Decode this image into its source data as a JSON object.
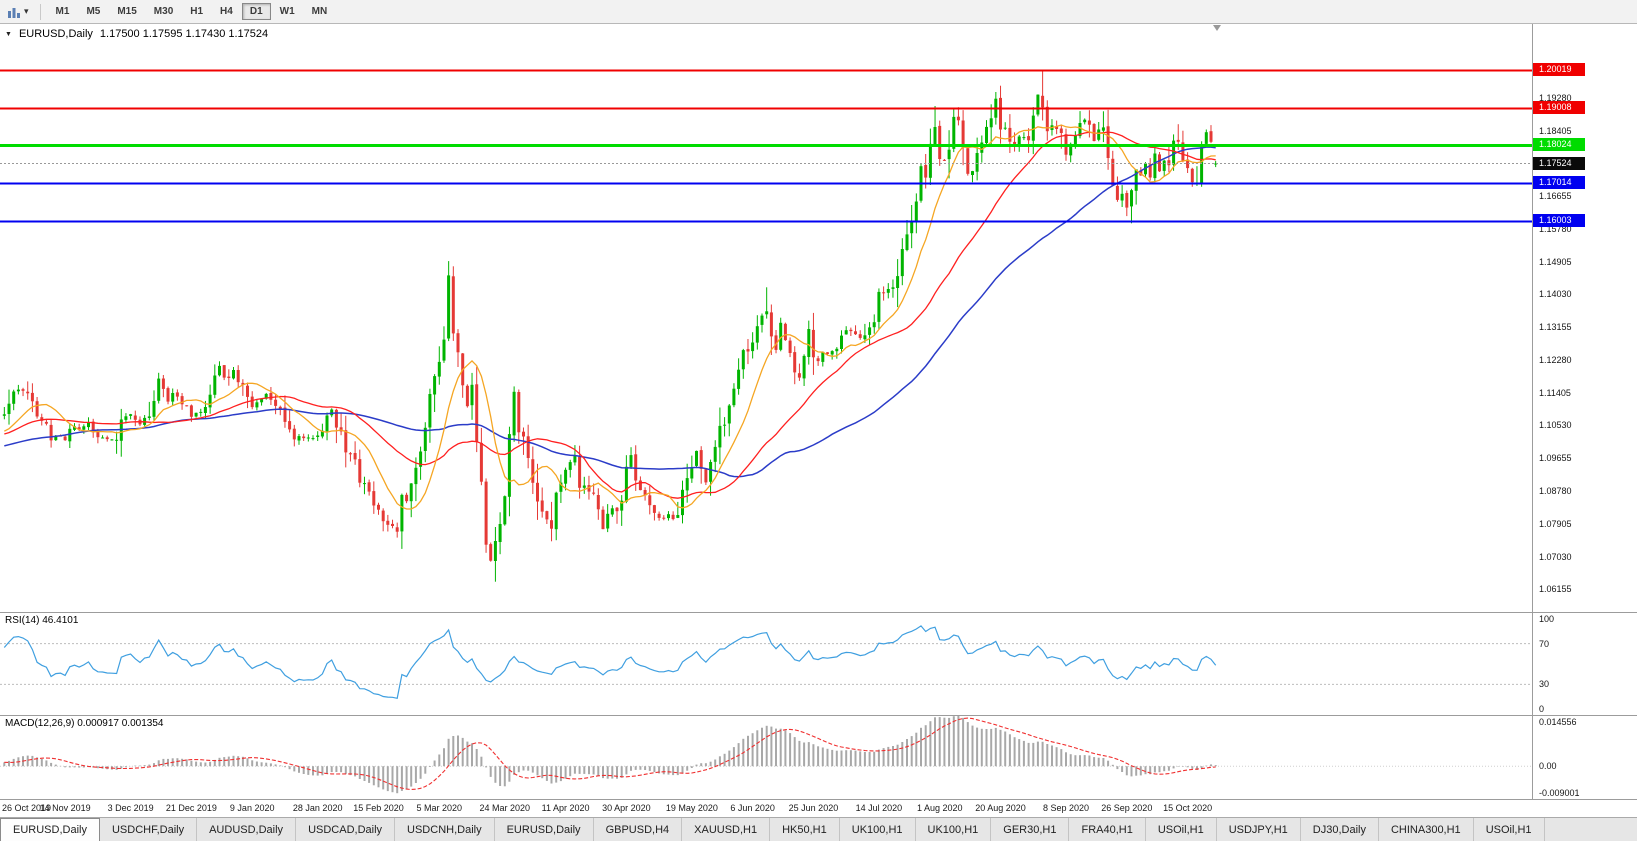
{
  "toolbar": {
    "timeframes": [
      "M1",
      "M5",
      "M15",
      "M30",
      "H1",
      "H4",
      "D1",
      "W1",
      "MN"
    ],
    "active_timeframe": "D1"
  },
  "main_chart": {
    "title": "EURUSD,Daily",
    "ohlc_text": "1.17500 1.17595 1.17430 1.17524",
    "ohlc": {
      "open": "1.17500",
      "high": "1.17595",
      "low": "1.17430",
      "close": "1.17524"
    },
    "price_range": [
      1.0555,
      1.2125
    ],
    "y_ticks": [
      "1.19280",
      "1.18405",
      "1.16655",
      "1.15780",
      "1.14905",
      "1.14030",
      "1.13155",
      "1.12280",
      "1.11405",
      "1.10530",
      "1.09655",
      "1.08780",
      "1.07905",
      "1.07030",
      "1.06155"
    ],
    "levels": [
      {
        "price": 1.20019,
        "label": "1.20019",
        "color": "#f00000",
        "type": "resistance",
        "width": 2
      },
      {
        "price": 1.19008,
        "label": "1.19008",
        "color": "#f00000",
        "type": "resistance",
        "width": 2
      },
      {
        "price": 1.18024,
        "label": "1.18024",
        "color": "#00dc00",
        "type": "pivot",
        "width": 3
      },
      {
        "price": 1.17014,
        "label": "1.17014",
        "color": "#0000f0",
        "type": "support",
        "width": 2
      },
      {
        "price": 1.16003,
        "label": "1.16003",
        "color": "#0000f0",
        "type": "support",
        "width": 2
      }
    ],
    "current_price": {
      "value": 1.17524,
      "label": "1.17524",
      "badge_color": "#0a0a0a"
    }
  },
  "rsi_panel": {
    "label": "RSI(14) 46.4101",
    "indicator": "RSI",
    "period": 14,
    "value": "46.4101",
    "axis_ticks": [
      "100",
      "70",
      "30",
      "0"
    ],
    "levels": [
      70,
      30
    ],
    "range": [
      0,
      100
    ],
    "color": "#3f9fe0"
  },
  "macd_panel": {
    "label": "MACD(12,26,9) 0.000917 0.001354",
    "values": [
      "0.000917",
      "0.001354"
    ],
    "axis_ticks": [
      "0.014556",
      "0.00",
      "-0.009001"
    ],
    "range": [
      -0.0095,
      0.014556
    ],
    "hist_color": "#a8a8a8",
    "signal_color": "#f03030"
  },
  "date_axis": {
    "labels": [
      "26 Oct 2019",
      "14 Nov 2019",
      "3 Dec 2019",
      "21 Dec 2019",
      "9 Jan 2020",
      "28 Jan 2020",
      "15 Feb 2020",
      "5 Mar 2020",
      "24 Mar 2020",
      "11 Apr 2020",
      "30 Apr 2020",
      "19 May 2020",
      "6 Jun 2020",
      "25 Jun 2020",
      "14 Jul 2020",
      "1 Aug 2020",
      "20 Aug 2020",
      "8 Sep 2020",
      "26 Sep 2020",
      "15 Oct 2020"
    ],
    "tick_indices": [
      0,
      13,
      27,
      40,
      53,
      67,
      80,
      93,
      107,
      120,
      133,
      147,
      160,
      173,
      187,
      200,
      213,
      227,
      240,
      253
    ]
  },
  "tabs": [
    {
      "label": "EURUSD,Daily",
      "active": true
    },
    {
      "label": "USDCHF,Daily",
      "active": false
    },
    {
      "label": "AUDUSD,Daily",
      "active": false
    },
    {
      "label": "USDCAD,Daily",
      "active": false
    },
    {
      "label": "USDCNH,Daily",
      "active": false
    },
    {
      "label": "EURUSD,Daily",
      "active": false
    },
    {
      "label": "GBPUSD,H4",
      "active": false
    },
    {
      "label": "XAUUSD,H1",
      "active": false
    },
    {
      "label": "HK50,H1",
      "active": false
    },
    {
      "label": "UK100,H1",
      "active": false
    },
    {
      "label": "UK100,H1",
      "active": false
    },
    {
      "label": "GER30,H1",
      "active": false
    },
    {
      "label": "FRA40,H1",
      "active": false
    },
    {
      "label": "USOil,H1",
      "active": false
    },
    {
      "label": "USDJPY,H1",
      "active": false
    },
    {
      "label": "DJ30,Daily",
      "active": false
    },
    {
      "label": "CHINA300,H1",
      "active": false
    },
    {
      "label": "USOil,H1",
      "active": false
    }
  ],
  "chart_data": {
    "type": "candlestick",
    "symbol": "EURUSD",
    "timeframe": "Daily",
    "x_range": [
      "26 Oct 2019",
      "22 Oct 2020"
    ],
    "candle_count": 260,
    "colors": {
      "up": "#00b400",
      "down": "#e53935"
    },
    "moving_averages": [
      {
        "type": "SMA",
        "period": 10,
        "color": "#f5a623"
      },
      {
        "type": "SMA",
        "period": 30,
        "color": "#ff2020"
      },
      {
        "type": "SMA",
        "period": 60,
        "color": "#2b3cc8"
      }
    ],
    "price_anchors": [
      [
        0,
        1.108
      ],
      [
        2,
        1.1135
      ],
      [
        4,
        1.1152
      ],
      [
        6,
        1.1113
      ],
      [
        8,
        1.107
      ],
      [
        10,
        1.1018
      ],
      [
        13,
        1.1022
      ],
      [
        14,
        1.1051
      ],
      [
        16,
        1.1048
      ],
      [
        18,
        1.1059
      ],
      [
        21,
        1.1018
      ],
      [
        24,
        1.1018
      ],
      [
        25,
        1.1078
      ],
      [
        27,
        1.1081
      ],
      [
        29,
        1.106
      ],
      [
        31,
        1.1093
      ],
      [
        33,
        1.1183
      ],
      [
        35,
        1.112
      ],
      [
        36,
        1.1145
      ],
      [
        38,
        1.1113
      ],
      [
        40,
        1.1078
      ],
      [
        43,
        1.1098
      ],
      [
        45,
        1.1199
      ],
      [
        46,
        1.1212
      ],
      [
        47,
        1.1172
      ],
      [
        49,
        1.1196
      ],
      [
        53,
        1.1105
      ],
      [
        56,
        1.1133
      ],
      [
        59,
        1.1095
      ],
      [
        62,
        1.1026
      ],
      [
        64,
        1.1019
      ],
      [
        67,
        1.1022
      ],
      [
        70,
        1.1093
      ],
      [
        71,
        1.106
      ],
      [
        73,
        1.0999
      ],
      [
        75,
        1.0946
      ],
      [
        76,
        1.0911
      ],
      [
        78,
        1.0873
      ],
      [
        79,
        1.0841
      ],
      [
        80,
        1.083
      ],
      [
        82,
        1.0792
      ],
      [
        84,
        1.0785
      ],
      [
        85,
        1.0846
      ],
      [
        87,
        1.088
      ],
      [
        89,
        1.1
      ],
      [
        90,
        1.1026
      ],
      [
        91,
        1.1134
      ],
      [
        92,
        1.1173
      ],
      [
        93,
        1.124
      ],
      [
        94,
        1.1284
      ],
      [
        95,
        1.1456
      ],
      [
        96,
        1.1281
      ],
      [
        97,
        1.127
      ],
      [
        98,
        1.1184
      ],
      [
        99,
        1.1106
      ],
      [
        100,
        1.1181
      ],
      [
        101,
        1.0998
      ],
      [
        102,
        1.0917
      ],
      [
        103,
        1.072
      ],
      [
        104,
        1.0694
      ],
      [
        105,
        1.0727
      ],
      [
        106,
        1.0786
      ],
      [
        107,
        1.0885
      ],
      [
        108,
        1.103
      ],
      [
        109,
        1.1141
      ],
      [
        110,
        1.1048
      ],
      [
        111,
        1.1031
      ],
      [
        112,
        1.0965
      ],
      [
        114,
        1.0857
      ],
      [
        115,
        1.0809
      ],
      [
        117,
        1.0791
      ],
      [
        118,
        1.0893
      ],
      [
        120,
        1.0935
      ],
      [
        122,
        1.098
      ],
      [
        123,
        1.091
      ],
      [
        126,
        1.0862
      ],
      [
        128,
        1.0775
      ],
      [
        129,
        1.0821
      ],
      [
        131,
        1.0834
      ],
      [
        132,
        1.0875
      ],
      [
        133,
        1.0955
      ],
      [
        134,
        1.098
      ],
      [
        135,
        1.0905
      ],
      [
        138,
        1.0833
      ],
      [
        140,
        1.0807
      ],
      [
        142,
        1.0815
      ],
      [
        143,
        1.0805
      ],
      [
        144,
        1.082
      ],
      [
        146,
        1.0915
      ],
      [
        147,
        1.0924
      ],
      [
        148,
        1.0978
      ],
      [
        150,
        1.0901
      ],
      [
        152,
        1.0983
      ],
      [
        154,
        1.1076
      ],
      [
        155,
        1.1101
      ],
      [
        156,
        1.1134
      ],
      [
        158,
        1.1234
      ],
      [
        160,
        1.1291
      ],
      [
        163,
        1.1374
      ],
      [
        164,
        1.1298
      ],
      [
        165,
        1.1256
      ],
      [
        166,
        1.1324
      ],
      [
        168,
        1.1243
      ],
      [
        170,
        1.1177
      ],
      [
        171,
        1.126
      ],
      [
        172,
        1.1305
      ],
      [
        173,
        1.1219
      ],
      [
        175,
        1.1243
      ],
      [
        177,
        1.1252
      ],
      [
        180,
        1.1308
      ],
      [
        183,
        1.1284
      ],
      [
        186,
        1.1344
      ],
      [
        187,
        1.1394
      ],
      [
        188,
        1.141
      ],
      [
        190,
        1.1427
      ],
      [
        191,
        1.1446
      ],
      [
        192,
        1.1525
      ],
      [
        193,
        1.1571
      ],
      [
        194,
        1.1598
      ],
      [
        195,
        1.1656
      ],
      [
        196,
        1.1752
      ],
      [
        197,
        1.1716
      ],
      [
        198,
        1.1791
      ],
      [
        199,
        1.1847
      ],
      [
        200,
        1.1778
      ],
      [
        201,
        1.1762
      ],
      [
        202,
        1.1803
      ],
      [
        203,
        1.1862
      ],
      [
        204,
        1.1878
      ],
      [
        205,
        1.1787
      ],
      [
        206,
        1.1738
      ],
      [
        207,
        1.174
      ],
      [
        208,
        1.1781
      ],
      [
        209,
        1.1813
      ],
      [
        210,
        1.1842
      ],
      [
        211,
        1.1871
      ],
      [
        212,
        1.1934
      ],
      [
        213,
        1.1839
      ],
      [
        214,
        1.1858
      ],
      [
        215,
        1.1797
      ],
      [
        216,
        1.1786
      ],
      [
        217,
        1.1834
      ],
      [
        218,
        1.183
      ],
      [
        219,
        1.182
      ],
      [
        220,
        1.1903
      ],
      [
        221,
        1.1936
      ],
      [
        222,
        1.1911
      ],
      [
        223,
        1.1854
      ],
      [
        224,
        1.1852
      ],
      [
        225,
        1.1838
      ],
      [
        226,
        1.1815
      ],
      [
        227,
        1.1777
      ],
      [
        228,
        1.1801
      ],
      [
        229,
        1.1814
      ],
      [
        230,
        1.1845
      ],
      [
        231,
        1.1866
      ],
      [
        232,
        1.1845
      ],
      [
        233,
        1.1816
      ],
      [
        234,
        1.1847
      ],
      [
        235,
        1.184
      ],
      [
        236,
        1.1772
      ],
      [
        237,
        1.1707
      ],
      [
        238,
        1.1659
      ],
      [
        239,
        1.1672
      ],
      [
        240,
        1.1631
      ],
      [
        241,
        1.1665
      ],
      [
        242,
        1.1742
      ],
      [
        243,
        1.1722
      ],
      [
        244,
        1.1748
      ],
      [
        245,
        1.1716
      ],
      [
        246,
        1.1784
      ],
      [
        247,
        1.1734
      ],
      [
        248,
        1.1766
      ],
      [
        249,
        1.176
      ],
      [
        250,
        1.1826
      ],
      [
        251,
        1.1812
      ],
      [
        252,
        1.1745
      ],
      [
        253,
        1.1746
      ],
      [
        254,
        1.1708
      ],
      [
        255,
        1.1718
      ],
      [
        256,
        1.18
      ],
      [
        257,
        1.184
      ],
      [
        258,
        1.179
      ],
      [
        259,
        1.17524
      ]
    ],
    "key_wicks": [
      [
        84,
        "low",
        1.0778
      ],
      [
        95,
        "high",
        1.1492
      ],
      [
        105,
        "low",
        1.0636
      ],
      [
        163,
        "high",
        1.1422
      ],
      [
        199,
        "high",
        1.1906
      ],
      [
        222,
        "high",
        1.2002
      ],
      [
        240,
        "low",
        1.1612
      ]
    ]
  }
}
